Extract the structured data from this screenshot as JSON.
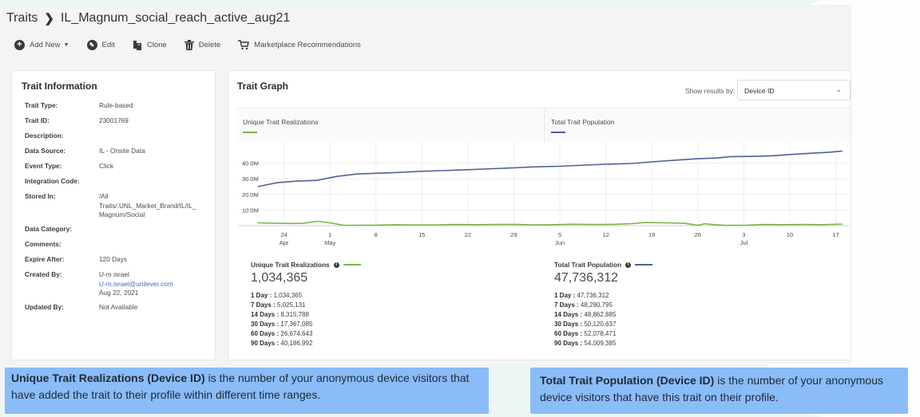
{
  "breadcrumb": {
    "root": "Traits",
    "current": "IL_Magnum_social_reach_active_aug21"
  },
  "toolbar": [
    {
      "label": "Add New",
      "icon": "plus-circle-icon",
      "has_dropdown": true
    },
    {
      "label": "Edit",
      "icon": "pencil-circle-icon"
    },
    {
      "label": "Clone",
      "icon": "clone-icon"
    },
    {
      "label": "Delete",
      "icon": "trash-icon"
    },
    {
      "label": "Marketplace Recommendations",
      "icon": "cart-icon"
    }
  ],
  "trait_info": {
    "title": "Trait Information",
    "rows": [
      {
        "label": "Trait Type:",
        "value": "Rule-based"
      },
      {
        "label": "Trait ID:",
        "value": "23001769"
      },
      {
        "label": "Description:",
        "value": ""
      },
      {
        "label": "Data Source:",
        "value": "IL - Onsite Data"
      },
      {
        "label": "Event Type:",
        "value": "Click"
      },
      {
        "label": "Integration Code:",
        "value": ""
      },
      {
        "label": "Stored In:",
        "value": "/All Traits/.UNL_Market_Brand/IL/IL_ Magnum/Social"
      },
      {
        "label": "Data Category:",
        "value": ""
      },
      {
        "label": "Comments:",
        "value": ""
      },
      {
        "label": "Expire After:",
        "value": "120 Days"
      },
      {
        "label": "Created By:",
        "value": "U-m israel",
        "email": "U-m.israel@unilever.com",
        "date": "Aug 22, 2021"
      },
      {
        "label": "Updated By:",
        "value": "Not Available"
      }
    ]
  },
  "trait_graph": {
    "title": "Trait Graph",
    "show_results_label": "Show results by:",
    "show_results_value": "Device ID",
    "legend": [
      {
        "label": "Unique Trait Realizations",
        "color": "#7ab648"
      },
      {
        "label": "Total Trait Population",
        "color": "#4f5f99"
      }
    ]
  },
  "chart_data": {
    "type": "line",
    "title": "Trait Graph",
    "xlabel": "",
    "ylabel": "",
    "x_ticks": [
      {
        "day": 4,
        "label": "24",
        "sub": "Apr"
      },
      {
        "day": 11,
        "label": "1",
        "sub": "May"
      },
      {
        "day": 18,
        "label": "8",
        "sub": ""
      },
      {
        "day": 25,
        "label": "15",
        "sub": ""
      },
      {
        "day": 32,
        "label": "22",
        "sub": ""
      },
      {
        "day": 39,
        "label": "29",
        "sub": ""
      },
      {
        "day": 46,
        "label": "5",
        "sub": "Jun"
      },
      {
        "day": 53,
        "label": "12",
        "sub": ""
      },
      {
        "day": 60,
        "label": "19",
        "sub": ""
      },
      {
        "day": 67,
        "label": "26",
        "sub": ""
      },
      {
        "day": 74,
        "label": "3",
        "sub": "Jul"
      },
      {
        "day": 81,
        "label": "10",
        "sub": ""
      },
      {
        "day": 88,
        "label": "17",
        "sub": ""
      }
    ],
    "y_ticks": [
      "10.0M",
      "20.0M",
      "30.0M",
      "40.0M"
    ],
    "ylim": [
      0,
      50000000
    ],
    "xlim": [
      -3,
      90
    ],
    "series": [
      {
        "name": "Total Trait Population",
        "color": "#4f5f99",
        "x": [
          0,
          3,
          6,
          9,
          12,
          15,
          18,
          21,
          25,
          28,
          32,
          36,
          39,
          42,
          46,
          50,
          53,
          57,
          60,
          64,
          67,
          70,
          72,
          75,
          78,
          81,
          84,
          87,
          89
        ],
        "y": [
          25000000,
          27500000,
          28500000,
          29000000,
          31500000,
          33000000,
          33500000,
          34000000,
          34800000,
          35200000,
          35800000,
          36500000,
          37000000,
          37600000,
          38000000,
          38800000,
          39300000,
          39800000,
          40800000,
          42000000,
          42800000,
          43300000,
          44200000,
          44300000,
          44600000,
          45500000,
          46300000,
          47000000,
          47736312
        ]
      },
      {
        "name": "Unique Trait Realizations",
        "color": "#7ab648",
        "x": [
          0,
          3,
          5,
          7,
          9,
          11,
          13,
          15,
          18,
          21,
          24,
          27,
          30,
          33,
          36,
          39,
          42,
          45,
          48,
          51,
          54,
          57,
          59,
          62,
          65,
          67,
          68,
          69,
          71,
          74,
          77,
          80,
          83,
          86,
          89
        ],
        "y": [
          1800000,
          1600000,
          1400000,
          1500000,
          2800000,
          1800000,
          300000,
          200000,
          300000,
          600000,
          400000,
          500000,
          700000,
          600000,
          700000,
          800000,
          500000,
          600000,
          900000,
          700000,
          800000,
          1300000,
          2000000,
          1800000,
          1500000,
          200000,
          1200000,
          800000,
          200000,
          200000,
          700000,
          600000,
          700000,
          600000,
          1034365
        ]
      }
    ]
  },
  "stats": [
    {
      "title": "Unique Trait Realizations",
      "color": "#7ab648",
      "total": "1,034,365",
      "rows": [
        {
          "label": "1 Day :",
          "value": "1,034,365"
        },
        {
          "label": "7 Days :",
          "value": "5,025,131"
        },
        {
          "label": "14 Days :",
          "value": "8,315,788"
        },
        {
          "label": "30 Days :",
          "value": "17,367,085"
        },
        {
          "label": "60 Days :",
          "value": "26,674,643"
        },
        {
          "label": "90 Days :",
          "value": "40,186,992"
        }
      ]
    },
    {
      "title": "Total Trait Population",
      "color": "#4f5f99",
      "total": "47,736,312",
      "rows": [
        {
          "label": "1 Day :",
          "value": "47,736,312"
        },
        {
          "label": "7 Days :",
          "value": "48,290,795"
        },
        {
          "label": "14 Days :",
          "value": "48,862,885"
        },
        {
          "label": "30 Days :",
          "value": "50,120,637"
        },
        {
          "label": "60 Days :",
          "value": "52,078,471"
        },
        {
          "label": "90 Days :",
          "value": "54,009,385"
        }
      ]
    }
  ],
  "callouts": [
    {
      "bold": "Unique Trait Realizations (Device ID)",
      "text": " is the number of your anonymous device visitors that have added the trait to their profile within different time ranges."
    },
    {
      "bold": "Total Trait Population (Device ID)",
      "text": " is the number of your anonymous device visitors that have this trait on their profile."
    }
  ]
}
